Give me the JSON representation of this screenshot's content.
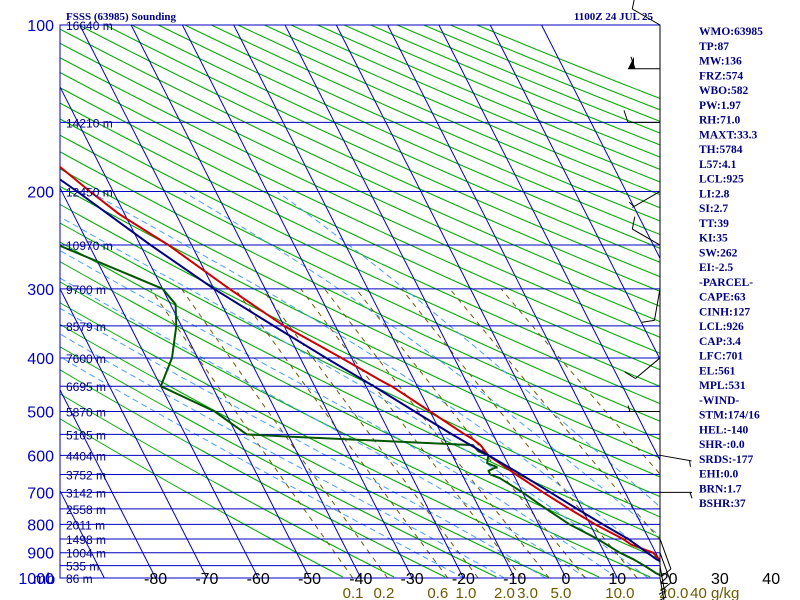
{
  "header": {
    "title": "FSSS (63985) Sounding",
    "time": "1100Z 24 JUL 25"
  },
  "chart_data": {
    "type": "line",
    "title": "FSSS (63985) Sounding",
    "pressure_unit": "mb",
    "pressure_ticks": [
      100,
      200,
      300,
      400,
      500,
      600,
      700,
      800,
      900,
      1000
    ],
    "temperature_ticks": [
      -80,
      -70,
      -60,
      -50,
      -40,
      -30,
      -20,
      -10,
      0,
      10,
      20,
      30,
      40
    ],
    "mixing_ratio_labels": [
      {
        "label": "0.1",
        "p": 1000,
        "t": -41.5
      },
      {
        "label": "0.2",
        "p": 1000,
        "t": -35.5
      },
      {
        "label": "0.6",
        "p": 1000,
        "t": -25
      },
      {
        "label": "1.0",
        "p": 1000,
        "t": -19.5
      },
      {
        "label": "2.0",
        "p": 1000,
        "t": -12
      },
      {
        "label": "3.0",
        "p": 1000,
        "t": -7.5
      },
      {
        "label": "5.0",
        "p": 1000,
        "t": -1
      },
      {
        "label": "10.0",
        "p": 1000,
        "t": 10.5
      },
      {
        "label": "20.0",
        "p": 1000,
        "t": 21
      },
      {
        "label": "40 g/kg",
        "p": 1000,
        "t": 29
      }
    ],
    "height_labels": [
      {
        "label": "16640 m",
        "p": 100
      },
      {
        "label": "14210 m",
        "p": 150
      },
      {
        "label": "12450 m",
        "p": 200
      },
      {
        "label": "10970 m",
        "p": 250
      },
      {
        "label": "9700 m",
        "p": 300
      },
      {
        "label": "8579 m",
        "p": 350
      },
      {
        "label": "7600 m",
        "p": 400
      },
      {
        "label": "6695 m",
        "p": 450
      },
      {
        "label": "5870 m",
        "p": 500
      },
      {
        "label": "5105 m",
        "p": 550
      },
      {
        "label": "4404 m",
        "p": 600
      },
      {
        "label": "3752 m",
        "p": 650
      },
      {
        "label": "3142 m",
        "p": 700
      },
      {
        "label": "2558 m",
        "p": 750
      },
      {
        "label": "2011 m",
        "p": 800
      },
      {
        "label": "1498 m",
        "p": 850
      },
      {
        "label": "1004 m",
        "p": 900
      },
      {
        "label": "535 m",
        "p": 950
      },
      {
        "label": "86 m",
        "p": 1000
      }
    ],
    "series": [
      {
        "kind": "temperature",
        "color": "#cc0000",
        "points": [
          [
            1000,
            25.5
          ],
          [
            980,
            23
          ],
          [
            950,
            21.5
          ],
          [
            925,
            20
          ],
          [
            900,
            19.5
          ],
          [
            870,
            16
          ],
          [
            850,
            15
          ],
          [
            800,
            11
          ],
          [
            750,
            7.5
          ],
          [
            700,
            4
          ],
          [
            650,
            0.5
          ],
          [
            600,
            -3
          ],
          [
            575,
            -3.5
          ],
          [
            560,
            -4.5
          ],
          [
            550,
            -5.5
          ],
          [
            500,
            -10
          ],
          [
            450,
            -15
          ],
          [
            440,
            -16.5
          ],
          [
            400,
            -22
          ],
          [
            350,
            -30
          ],
          [
            300,
            -37
          ],
          [
            250,
            -44.5
          ],
          [
            220,
            -51
          ],
          [
            200,
            -54.5
          ],
          [
            180,
            -58
          ],
          [
            160,
            -64
          ],
          [
            150,
            -68
          ],
          [
            140,
            -70
          ],
          [
            128,
            -67
          ],
          [
            120,
            -66.5
          ],
          [
            115,
            -68.5
          ],
          [
            108,
            -70
          ],
          [
            100,
            -73
          ]
        ]
      },
      {
        "kind": "dewpoint",
        "color": "#005500",
        "points": [
          [
            1000,
            19.5
          ],
          [
            980,
            18
          ],
          [
            950,
            16.5
          ],
          [
            925,
            15
          ],
          [
            900,
            13
          ],
          [
            850,
            10
          ],
          [
            800,
            6
          ],
          [
            750,
            3
          ],
          [
            700,
            0
          ],
          [
            660,
            -3
          ],
          [
            650,
            -4.5
          ],
          [
            640,
            -4.5
          ],
          [
            630,
            -2.5
          ],
          [
            620,
            -4
          ],
          [
            610,
            -3.5
          ],
          [
            600,
            -3
          ],
          [
            590,
            -4.5
          ],
          [
            575,
            -5
          ],
          [
            555,
            -40
          ],
          [
            550,
            -48
          ],
          [
            500,
            -52
          ],
          [
            450,
            -60
          ],
          [
            400,
            -55
          ],
          [
            350,
            -51
          ],
          [
            320,
            -49
          ],
          [
            300,
            -50
          ],
          [
            250,
            -66
          ],
          [
            200,
            -67
          ],
          [
            190,
            -65
          ],
          [
            170,
            -71
          ],
          [
            160,
            -74
          ],
          [
            150,
            -77
          ],
          [
            140,
            -80
          ],
          [
            130,
            -83
          ]
        ]
      },
      {
        "kind": "parcel",
        "color": "#000080",
        "points": [
          [
            1000,
            25.5
          ],
          [
            926,
            19.5
          ],
          [
            850,
            16
          ],
          [
            800,
            12.5
          ],
          [
            750,
            9
          ],
          [
            701,
            5.5
          ],
          [
            650,
            1.5
          ],
          [
            600,
            -3
          ],
          [
            550,
            -8
          ],
          [
            500,
            -13
          ],
          [
            450,
            -18.5
          ],
          [
            400,
            -25
          ],
          [
            350,
            -32
          ],
          [
            300,
            -40
          ],
          [
            250,
            -48
          ],
          [
            200,
            -57
          ],
          [
            170,
            -64
          ],
          [
            150,
            -69
          ],
          [
            130,
            -75
          ]
        ]
      }
    ],
    "wind_barbs": [
      {
        "p": 100,
        "dir": 300,
        "spd": 10
      },
      {
        "p": 120,
        "dir": 270,
        "spd": 60
      },
      {
        "p": 150,
        "dir": 270,
        "spd": 10
      },
      {
        "p": 200,
        "dir": 240,
        "spd": 5
      },
      {
        "p": 250,
        "dir": 300,
        "spd": 10
      },
      {
        "p": 300,
        "dir": 190,
        "spd": 10
      },
      {
        "p": 400,
        "dir": 230,
        "spd": 10
      },
      {
        "p": 500,
        "dir": 270,
        "spd": 5
      },
      {
        "p": 600,
        "dir": 100,
        "spd": 5
      },
      {
        "p": 700,
        "dir": 90,
        "spd": 5
      },
      {
        "p": 850,
        "dir": 160,
        "spd": 10
      },
      {
        "p": 900,
        "dir": 160,
        "spd": 10
      },
      {
        "p": 950,
        "dir": 170,
        "spd": 15
      },
      {
        "p": 1000,
        "dir": 170,
        "spd": 15
      }
    ],
    "indices": [
      "WMO:63985",
      "TP:87",
      "MW:136",
      "FRZ:574",
      "WBO:582",
      "PW:1.97",
      "RH:71.0",
      "MAXT:33.3",
      "TH:5784",
      "L57:4.1",
      "LCL:925",
      "LI:2.8",
      "SI:2.7",
      "TT:39",
      "KI:35",
      "SW:262",
      "EI:-2.5",
      "-PARCEL-",
      "CAPE:63",
      "CINH:127",
      "LCL:926",
      "CAP:3.4",
      "LFC:701",
      "EL:561",
      "MPL:531",
      "-WIND-",
      "STM:174/16",
      "HEL:-140",
      "SHR-:0.0",
      "SRDS:-177",
      "EHI:0.0",
      "BRN:1.7",
      "BSHR:37"
    ],
    "colors": {
      "isobar": "#0000c0",
      "isotherm": "#0000c0",
      "dry_adiabat": "#00aa00",
      "moist_adiabat": "#4aa0ff",
      "mixing_ratio": "#6b5a00",
      "temperature": "#cc0000",
      "dewpoint": "#005500",
      "parcel": "#000080"
    }
  }
}
